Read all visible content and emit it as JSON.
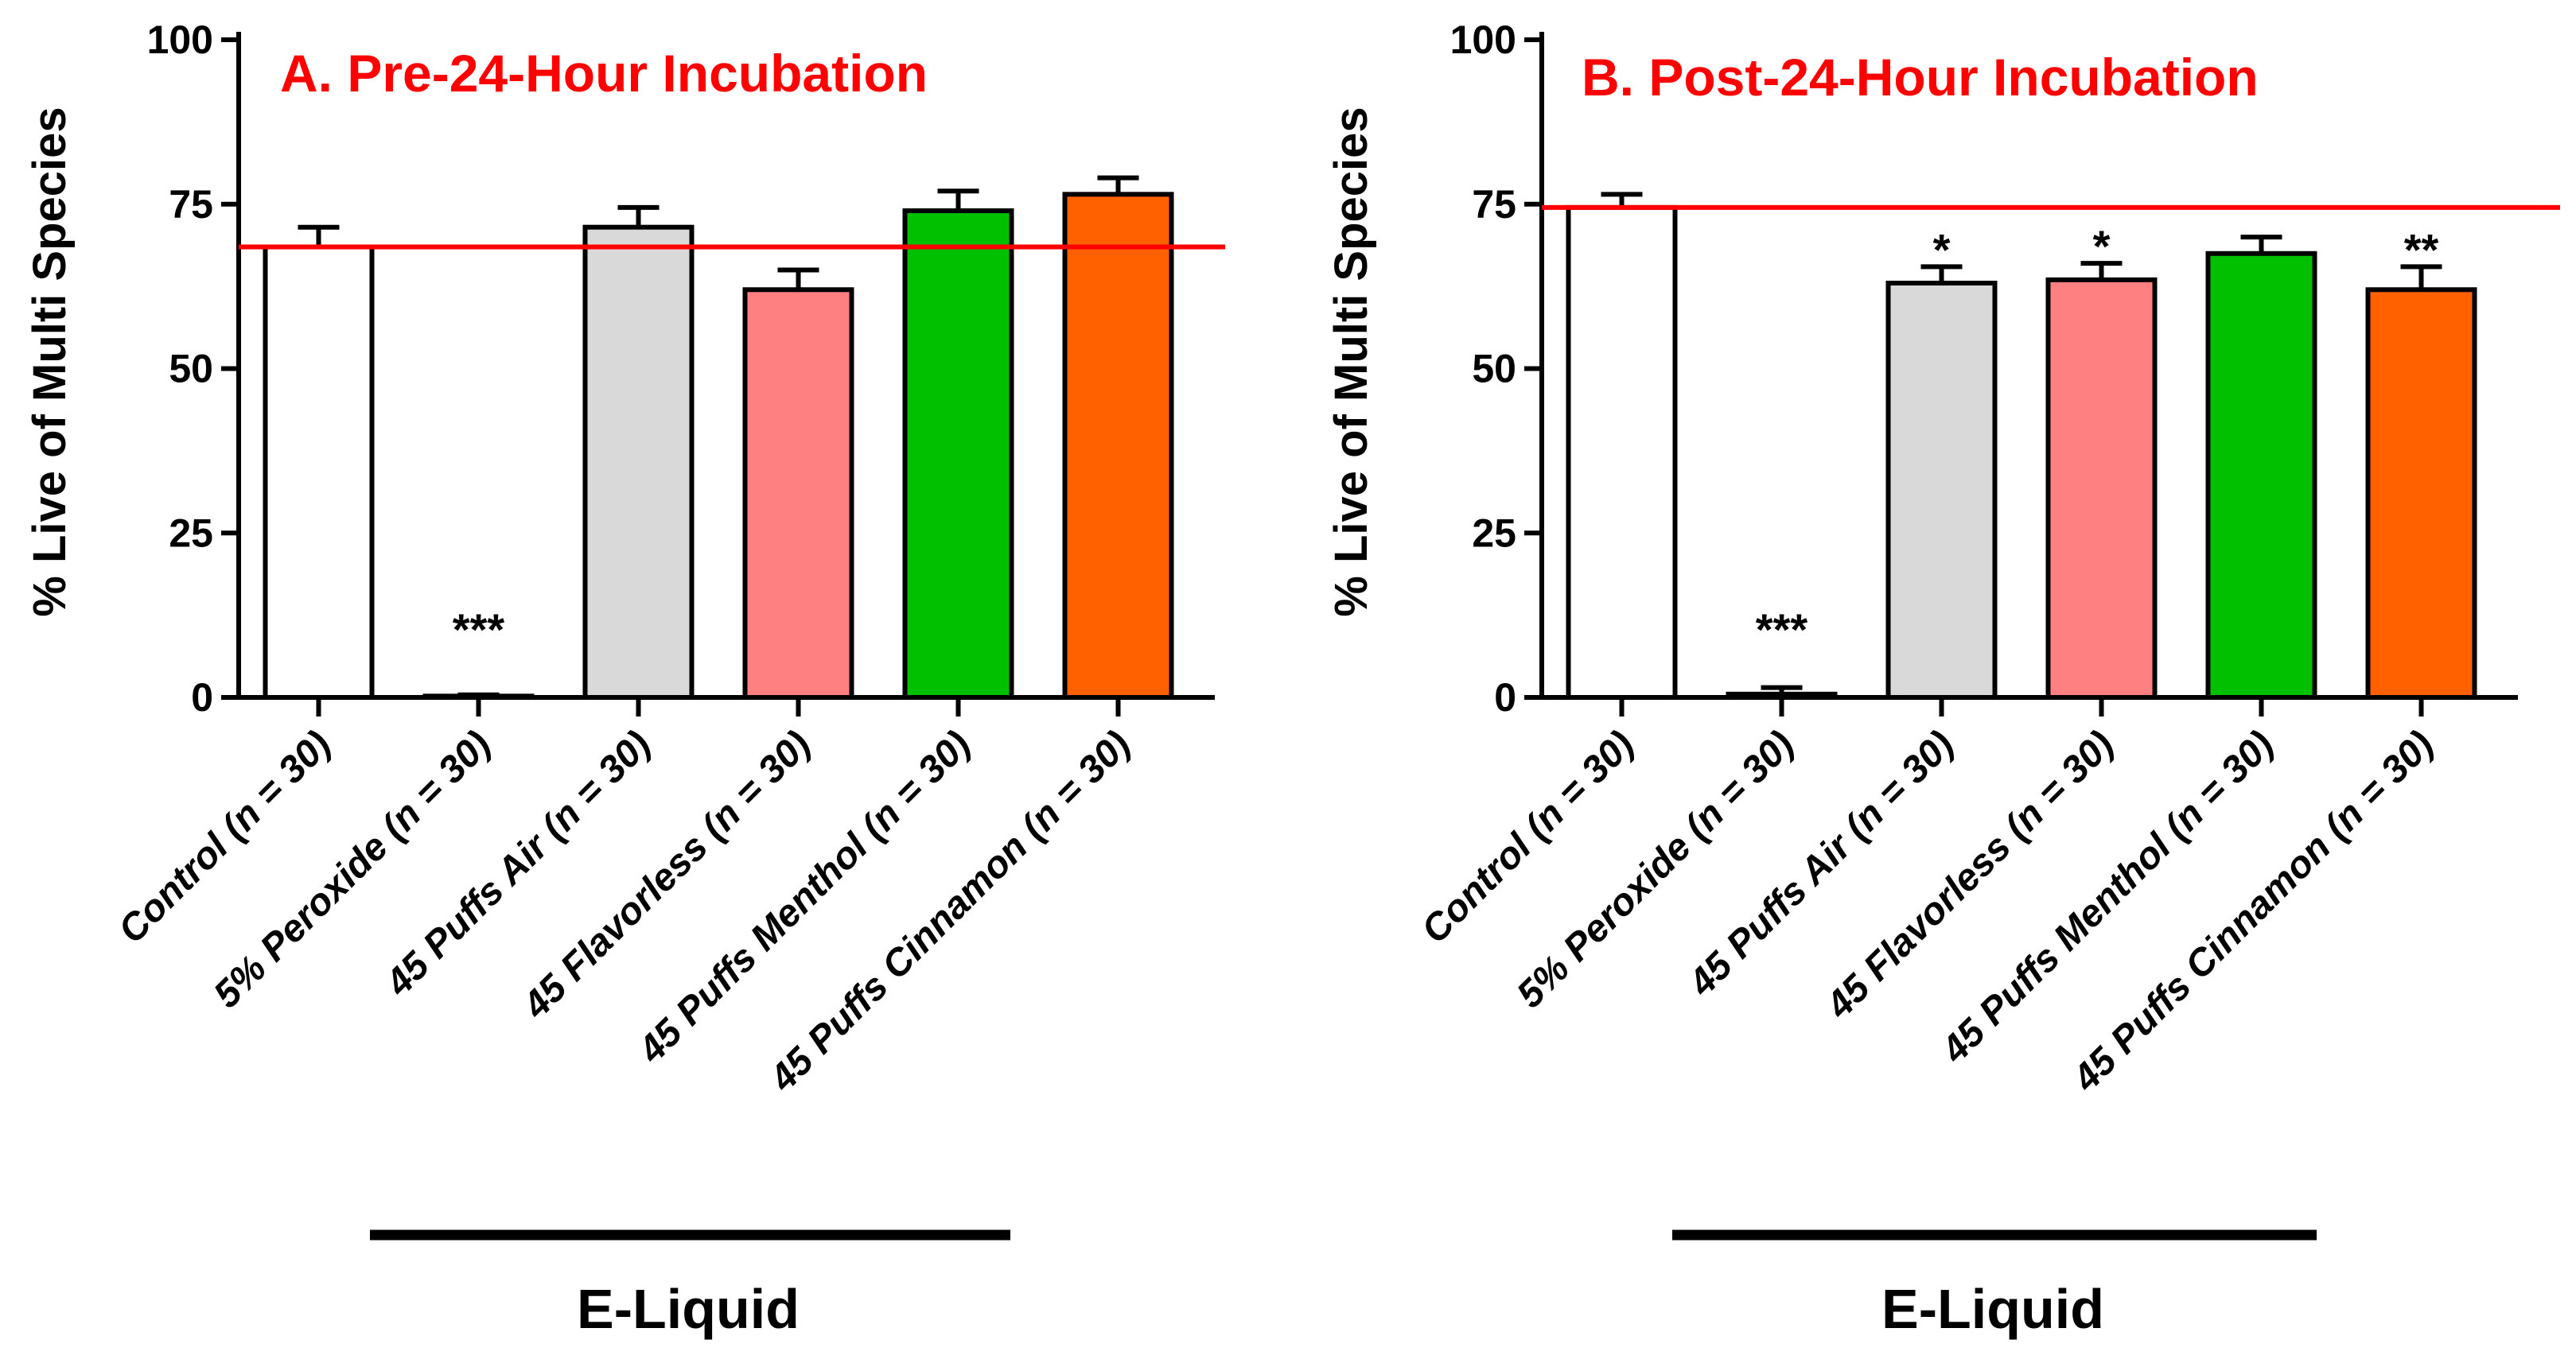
{
  "chart_data": [
    {
      "type": "bar",
      "title": "A. Pre-24-Hour Incubation",
      "title_color": "#ff0000",
      "ylabel": "% Live of Multi Species",
      "xlabel": "",
      "ylim": [
        0,
        100
      ],
      "yticks": [
        0,
        25,
        50,
        75,
        100
      ],
      "reference_line": 68.5,
      "reference_line_color": "#ff0000",
      "categories": [
        "Control (n = 30)",
        "5% Peroxide (n = 30)",
        "45 Puffs Air (n = 30)",
        "45 Flavorless  (n = 30)",
        "45 Puffs Menthol (n = 30)",
        "45 Puffs Cinnamon (n = 30)"
      ],
      "category_parts": [
        {
          "name": "Control",
          "n": "(n = 30)"
        },
        {
          "name": "5% Peroxide",
          "n": "(n = 30)"
        },
        {
          "name": "45 Puffs Air",
          "n": "(n = 30)"
        },
        {
          "name": "45 Flavorless ",
          "n": "(n = 30)"
        },
        {
          "name": "45 Puffs Menthol",
          "n": "(n = 30)"
        },
        {
          "name": "45 Puffs Cinnamon",
          "n": "(n = 30)"
        }
      ],
      "values": [
        68.5,
        0.2,
        71.5,
        62,
        74,
        76.5
      ],
      "errors": [
        3,
        0.2,
        3,
        3,
        3,
        2.5
      ],
      "colors": [
        "#ffffff",
        "#ffffff",
        "#d9d9d9",
        "#ff8080",
        "#00c000",
        "#ff6000"
      ],
      "significance": [
        "",
        "***",
        "",
        "",
        "",
        ""
      ],
      "group_label": "E-Liquid"
    },
    {
      "type": "bar",
      "title": "B. Post-24-Hour Incubation",
      "title_color": "#ff0000",
      "ylabel": "% Live of Multi Species",
      "xlabel": "",
      "ylim": [
        0,
        100
      ],
      "yticks": [
        0,
        25,
        50,
        75,
        100
      ],
      "reference_line": 74.5,
      "reference_line_color": "#ff0000",
      "categories": [
        "Control (n = 30)",
        "5% Peroxide (n = 30)",
        "45 Puffs Air (n = 30)",
        "45 Flavorless  (n = 30)",
        "45 Puffs Menthol (n = 30)",
        "45 Puffs Cinnamon (n = 30)"
      ],
      "category_parts": [
        {
          "name": "Control",
          "n": "(n = 30)"
        },
        {
          "name": "5% Peroxide",
          "n": "(n = 30)"
        },
        {
          "name": "45 Puffs Air",
          "n": "(n = 30)"
        },
        {
          "name": "45 Flavorless ",
          "n": "(n = 30)"
        },
        {
          "name": "45 Puffs Menthol",
          "n": "(n = 30)"
        },
        {
          "name": "45 Puffs Cinnamon",
          "n": "(n = 30)"
        }
      ],
      "values": [
        74.5,
        0.5,
        63,
        63.5,
        67.5,
        62
      ],
      "errors": [
        2,
        1,
        2.5,
        2.5,
        2.5,
        3.5
      ],
      "colors": [
        "#ffffff",
        "#ffffff",
        "#d9d9d9",
        "#ff8080",
        "#00c000",
        "#ff6000"
      ],
      "significance": [
        "",
        "***",
        "*",
        "*",
        "",
        "**"
      ],
      "group_label": "E-Liquid"
    }
  ]
}
